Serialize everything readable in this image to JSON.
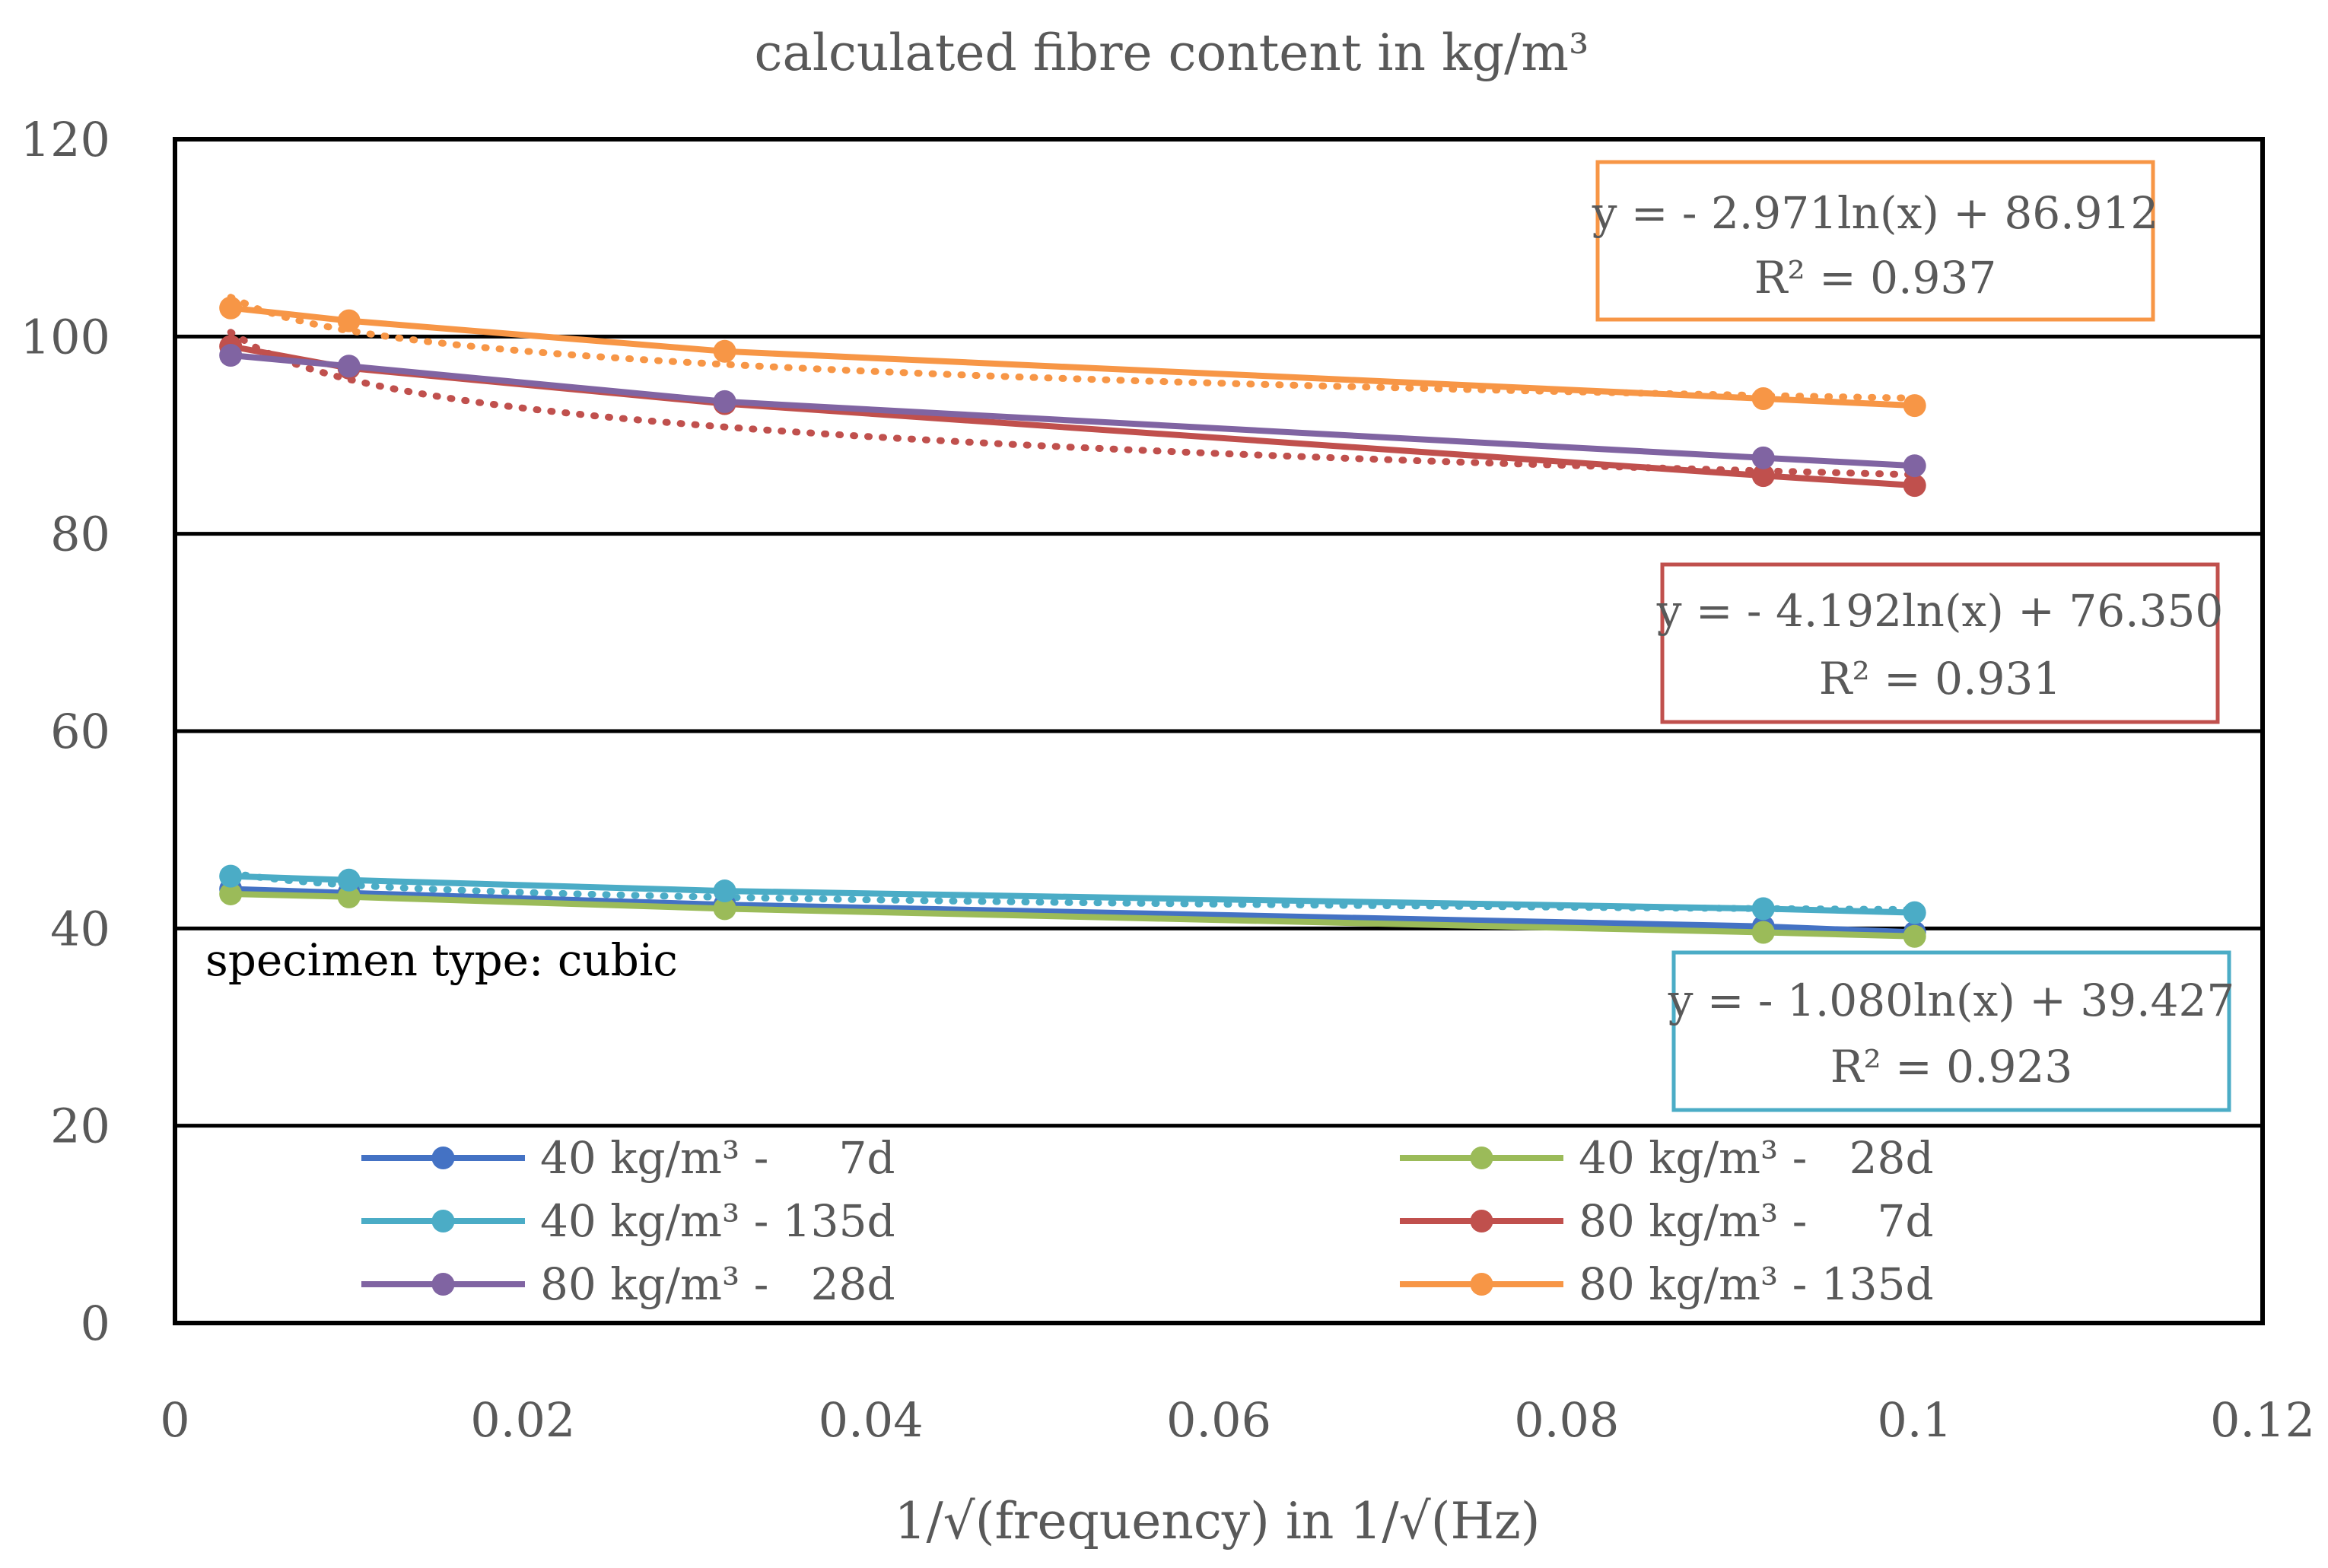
{
  "chart_data": {
    "type": "line",
    "title": "calculated fibre content in kg/m³",
    "xlabel": "1/√(frequency) in 1/√(Hz)",
    "ylabel": "",
    "xlim": [
      0,
      0.12
    ],
    "ylim": [
      0,
      120
    ],
    "x_ticks": [
      0,
      0.02,
      0.04,
      0.06,
      0.08,
      0.1,
      0.12
    ],
    "x_tick_labels": [
      "0",
      "0.02",
      "0.04",
      "0.06",
      "0.08",
      "0.1",
      "0.12"
    ],
    "y_ticks": [
      0,
      20,
      40,
      60,
      80,
      100,
      120
    ],
    "y_tick_labels": [
      "0",
      "20",
      "40",
      "60",
      "80",
      "100",
      "120"
    ],
    "grid": "horizontal",
    "x": [
      0.0032,
      0.01,
      0.0316,
      0.0913,
      0.1
    ],
    "series": [
      {
        "name": "40 kg/m³ -     7d",
        "color": "#4472c4",
        "values": [
          44.0,
          43.6,
          42.4,
          40.2,
          39.6
        ]
      },
      {
        "name": "40 kg/m³ -   28d",
        "color": "#9bbb59",
        "values": [
          43.5,
          43.2,
          42.0,
          39.6,
          39.2
        ]
      },
      {
        "name": "40 kg/m³ - 135d",
        "color": "#4bacc6",
        "values": [
          45.3,
          44.9,
          43.8,
          42.0,
          41.6
        ]
      },
      {
        "name": "80 kg/m³ -     7d",
        "color": "#c0504d",
        "values": [
          99.0,
          96.8,
          93.2,
          85.9,
          84.9
        ]
      },
      {
        "name": "80 kg/m³ -   28d",
        "color": "#8064a2",
        "values": [
          98.1,
          97.0,
          93.4,
          87.7,
          86.9
        ]
      },
      {
        "name": "80 kg/m³ - 135d",
        "color": "#f79646",
        "values": [
          102.9,
          101.6,
          98.5,
          93.7,
          93.0
        ]
      }
    ],
    "trendlines": [
      {
        "series": "80 kg/m³ - 135d",
        "color": "#f79646",
        "a": -2.971,
        "b": 86.912,
        "equation": "y = - 2.971ln(x) + 86.912",
        "r2": "R² = 0.937"
      },
      {
        "series": "80 kg/m³ -     7d",
        "color": "#c0504d",
        "a": -4.192,
        "b": 76.35,
        "equation": "y = - 4.192ln(x) + 76.350",
        "r2": "R² = 0.931"
      },
      {
        "series": "40 kg/m³ - 135d",
        "color": "#4bacc6",
        "a": -1.08,
        "b": 39.427,
        "equation": "y = - 1.080ln(x) + 39.427",
        "r2": "R² = 0.923"
      }
    ],
    "annotation": "specimen type: cubic",
    "legend_position": "bottom inside plot, two columns"
  }
}
